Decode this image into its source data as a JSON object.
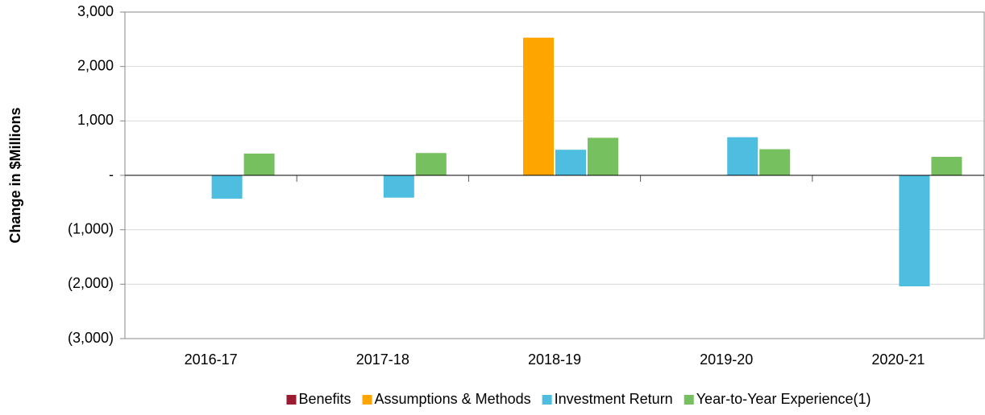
{
  "chart_data": {
    "type": "bar",
    "y_label": "Change in $Millions",
    "categories": [
      "2016-17",
      "2017-18",
      "2018-19",
      "2019-20",
      "2020-21"
    ],
    "series": [
      {
        "name": "Benefits",
        "color": "#9b1b30",
        "values": [
          0,
          0,
          0,
          0,
          0
        ]
      },
      {
        "name": "Assumptions & Methods",
        "color": "#ffa500",
        "values": [
          0,
          0,
          2530,
          0,
          0
        ]
      },
      {
        "name": "Investment Return",
        "color": "#4dbde0",
        "values": [
          -430,
          -410,
          470,
          700,
          -2040
        ]
      },
      {
        "name": "Year-to-Year Experience(1)",
        "color": "#77c060",
        "values": [
          400,
          410,
          690,
          480,
          340
        ]
      }
    ],
    "ylim": [
      -3000,
      3000
    ],
    "yticks": [
      {
        "value": -3000,
        "label": "(3,000)"
      },
      {
        "value": -2000,
        "label": "(2,000)"
      },
      {
        "value": -1000,
        "label": "(1,000)"
      },
      {
        "value": 0,
        "label": "-"
      },
      {
        "value": 1000,
        "label": "1,000"
      },
      {
        "value": 2000,
        "label": "2,000"
      },
      {
        "value": 3000,
        "label": "3,000"
      }
    ],
    "grid": true,
    "legend": "bottom"
  }
}
